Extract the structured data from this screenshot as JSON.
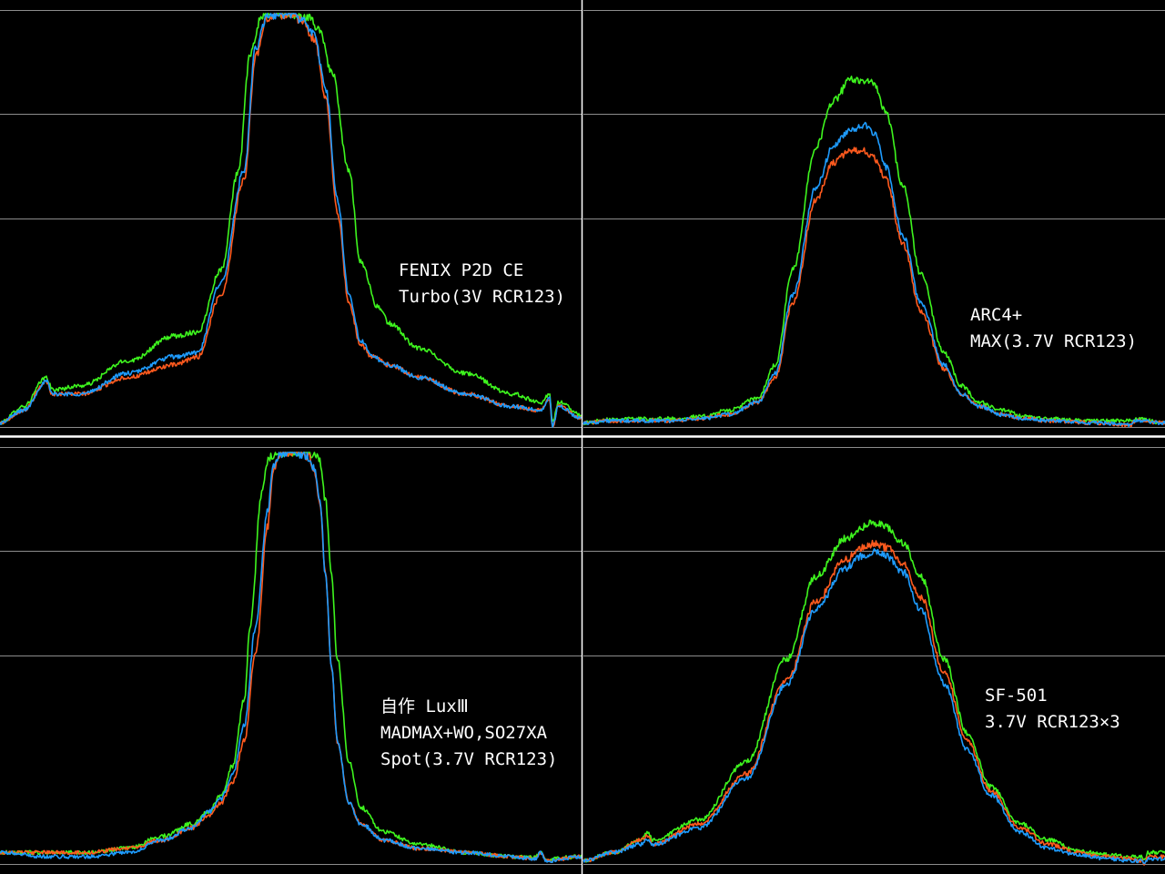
{
  "colors": {
    "background": "#000000",
    "grid": "#8c8c8c",
    "divider": "#ffffff",
    "red": "#ff5a1e",
    "green": "#3ef51e",
    "blue": "#1e9cff"
  },
  "chart_data": [
    {
      "type": "line",
      "id": "fenix-p2d",
      "label_lines": [
        "FENIX P2D CE",
        "Turbo(3V RCR123)"
      ],
      "xlim": [
        0,
        100
      ],
      "ylim": [
        0,
        100
      ],
      "grid": true,
      "series": [
        {
          "color": "red",
          "x": [
            0,
            4,
            8,
            9,
            14,
            22,
            30,
            34,
            38,
            42,
            44,
            46,
            48,
            50,
            52,
            54,
            56,
            58,
            60,
            62,
            64,
            67,
            72,
            80,
            88,
            93,
            94.5,
            95,
            96,
            100
          ],
          "y": [
            1,
            4,
            11,
            8,
            8,
            12,
            15,
            17,
            32,
            60,
            90,
            99,
            99.6,
            100,
            98,
            94,
            80,
            52,
            30,
            20,
            17,
            15,
            12,
            8,
            5,
            4,
            7,
            0,
            5,
            2
          ]
        },
        {
          "color": "green",
          "x": [
            0,
            4,
            8,
            9,
            14,
            22,
            30,
            34,
            38,
            41,
            43,
            45,
            47,
            49,
            51,
            53,
            55,
            57,
            60,
            62,
            65,
            67,
            72,
            80,
            88,
            93,
            94.5,
            95,
            96,
            100
          ],
          "y": [
            1,
            5,
            12,
            9,
            10,
            16,
            22,
            23,
            38,
            62,
            90,
            99.5,
            99.8,
            100,
            99.5,
            99,
            96,
            86,
            62,
            40,
            29,
            25,
            19,
            13,
            8,
            6,
            8,
            1,
            6,
            3
          ]
        },
        {
          "color": "blue",
          "x": [
            0,
            4,
            8,
            9,
            14,
            22,
            30,
            34,
            38,
            42,
            44,
            46,
            48,
            50,
            52,
            54,
            56,
            58,
            60,
            62,
            64,
            67,
            72,
            80,
            88,
            93,
            94.5,
            95,
            96,
            100
          ],
          "y": [
            1,
            4,
            11,
            8,
            8,
            13,
            17,
            18,
            35,
            62,
            92,
            99.4,
            99.8,
            100,
            98.5,
            95,
            82,
            55,
            32,
            21,
            17,
            15,
            12,
            8,
            5,
            4,
            7,
            0,
            5,
            2
          ]
        }
      ]
    },
    {
      "type": "line",
      "id": "arc4",
      "label_lines": [
        "ARC4+",
        "MAX(3.7V RCR123)"
      ],
      "xlim": [
        0,
        100
      ],
      "ylim": [
        0,
        100
      ],
      "grid": true,
      "series": [
        {
          "color": "red",
          "x": [
            0,
            5,
            10,
            15,
            20,
            25,
            30,
            33,
            36,
            40,
            43,
            46,
            48,
            50,
            52,
            55,
            58,
            62,
            65,
            68,
            72,
            76,
            80,
            88,
            94,
            95,
            100
          ],
          "y": [
            1,
            1.5,
            1.5,
            1.5,
            2,
            3,
            6,
            12,
            30,
            55,
            64,
            67,
            67,
            65,
            60,
            44,
            28,
            14,
            8,
            5,
            3,
            2,
            1.5,
            1,
            0.5,
            1.5,
            1
          ]
        },
        {
          "color": "green",
          "x": [
            0,
            5,
            10,
            15,
            20,
            25,
            30,
            33,
            36,
            40,
            43,
            46,
            48,
            50,
            52,
            55,
            58,
            62,
            65,
            68,
            72,
            76,
            80,
            88,
            94,
            95,
            100
          ],
          "y": [
            1,
            2,
            2,
            2,
            2.5,
            4,
            7,
            15,
            38,
            68,
            79,
            84,
            84,
            83,
            76,
            58,
            37,
            18,
            10,
            6,
            4,
            2.5,
            2,
            1.5,
            1.5,
            2,
            1
          ]
        },
        {
          "color": "blue",
          "x": [
            0,
            5,
            10,
            15,
            20,
            25,
            30,
            33,
            36,
            40,
            43,
            46,
            48,
            50,
            52,
            55,
            58,
            62,
            65,
            68,
            72,
            76,
            80,
            88,
            94,
            95,
            100
          ],
          "y": [
            1,
            1.5,
            1.5,
            1.5,
            2,
            3,
            6,
            13,
            32,
            58,
            68,
            72,
            73,
            71,
            63,
            46,
            30,
            15,
            8,
            5,
            3,
            2,
            1.5,
            1,
            0.5,
            1.5,
            1
          ]
        }
      ]
    },
    {
      "type": "line",
      "id": "diy-lux3",
      "label_lines": [
        "自作 LuxⅢ",
        "MADMAX+WO,SO27XA",
        "Spot(3.7V RCR123)"
      ],
      "xlim": [
        0,
        100
      ],
      "ylim": [
        0,
        100
      ],
      "grid": true,
      "series": [
        {
          "color": "red",
          "x": [
            0,
            8,
            15,
            22,
            28,
            33,
            36,
            38,
            40,
            42,
            44,
            46,
            47,
            48,
            49,
            50,
            51,
            52,
            53,
            54,
            55,
            56,
            57,
            58,
            60,
            62,
            66,
            72,
            80,
            88,
            92,
            93,
            94,
            100
          ],
          "y": [
            3,
            3,
            3,
            4,
            6,
            9,
            12,
            15,
            20,
            30,
            52,
            82,
            96,
            99.5,
            100,
            100,
            100,
            99.5,
            99,
            96,
            88,
            70,
            48,
            30,
            15,
            10,
            6,
            4,
            3,
            2,
            1.5,
            3,
            1,
            2
          ]
        },
        {
          "color": "green",
          "x": [
            0,
            8,
            15,
            22,
            28,
            33,
            36,
            38,
            40,
            42,
            43,
            45,
            46,
            47,
            48,
            49,
            50,
            51,
            52,
            53,
            54,
            55,
            56,
            57,
            58,
            60,
            62,
            66,
            72,
            80,
            88,
            92,
            93,
            94,
            100
          ],
          "y": [
            3,
            3,
            3,
            4,
            7,
            10,
            13,
            17,
            24,
            40,
            58,
            90,
            98,
            99.5,
            100,
            100,
            100,
            100,
            100,
            100,
            99.5,
            98,
            88,
            70,
            50,
            25,
            14,
            8,
            5,
            3,
            2,
            2,
            3,
            1.5,
            2
          ]
        },
        {
          "color": "blue",
          "x": [
            0,
            8,
            15,
            22,
            28,
            33,
            36,
            38,
            40,
            42,
            44,
            46,
            47,
            48,
            49,
            50,
            51,
            52,
            53,
            54,
            55,
            56,
            57,
            58,
            60,
            62,
            66,
            72,
            80,
            88,
            92,
            93,
            94,
            100
          ],
          "y": [
            3,
            2,
            2,
            3,
            6,
            9,
            13,
            16,
            22,
            34,
            58,
            86,
            97,
            99.5,
            100,
            100,
            100,
            99.5,
            99,
            96,
            88,
            70,
            48,
            30,
            15,
            10,
            6,
            4,
            3,
            2,
            1.5,
            3,
            1,
            2
          ]
        }
      ]
    },
    {
      "type": "line",
      "id": "sf-501",
      "label_lines": [
        "SF-501",
        "3.7V RCR123×3"
      ],
      "xlim": [
        0,
        100
      ],
      "ylim": [
        0,
        100
      ],
      "grid": true,
      "series": [
        {
          "color": "red",
          "x": [
            0,
            5,
            10,
            11,
            12,
            20,
            28,
            35,
            40,
            45,
            48,
            50,
            52,
            55,
            58,
            62,
            66,
            70,
            75,
            80,
            85,
            90,
            94,
            96,
            96.5,
            97,
            100
          ],
          "y": [
            1,
            3,
            6,
            7,
            5,
            10,
            22,
            45,
            64,
            74,
            77,
            78,
            77,
            73,
            65,
            47,
            30,
            18,
            9,
            5,
            3,
            2,
            1.5,
            1,
            0,
            2,
            2
          ]
        },
        {
          "color": "green",
          "x": [
            0,
            5,
            10,
            11,
            12,
            20,
            28,
            35,
            40,
            45,
            48,
            50,
            52,
            55,
            58,
            62,
            66,
            70,
            75,
            80,
            85,
            90,
            94,
            96,
            96.5,
            97,
            100
          ],
          "y": [
            1,
            3,
            6,
            8,
            6,
            11,
            25,
            50,
            70,
            79,
            82,
            83,
            82,
            78,
            70,
            50,
            32,
            19,
            10,
            6,
            3.5,
            2.5,
            2,
            2,
            1,
            3,
            3
          ]
        },
        {
          "color": "blue",
          "x": [
            0,
            5,
            10,
            11,
            12,
            20,
            28,
            35,
            40,
            45,
            48,
            50,
            52,
            55,
            58,
            62,
            66,
            70,
            75,
            80,
            85,
            90,
            94,
            96,
            96.5,
            97,
            100
          ],
          "y": [
            1,
            3,
            5,
            6,
            5,
            9,
            21,
            44,
            62,
            72,
            75,
            76,
            75,
            71,
            62,
            44,
            28,
            17,
            8,
            4,
            2.5,
            1.5,
            1,
            1,
            0,
            1.5,
            1.5
          ]
        }
      ]
    }
  ]
}
